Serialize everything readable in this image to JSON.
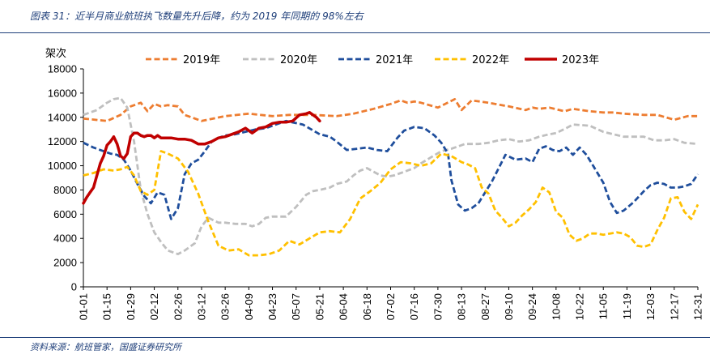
{
  "header": {
    "title": "图表 31：近半月商业航班执飞数量先升后降，约为 2019 年同期的 98%左右"
  },
  "footer": {
    "source": "资料来源：航班管家，国盛证券研究所"
  },
  "chart_data": {
    "type": "line",
    "ylabel": "架次",
    "ylim": [
      0,
      18000
    ],
    "yticks": [
      0,
      2000,
      4000,
      6000,
      8000,
      10000,
      12000,
      14000,
      16000,
      18000
    ],
    "x_tick_labels": [
      "01-01",
      "01-15",
      "01-29",
      "02-12",
      "02-26",
      "03-12",
      "03-26",
      "04-09",
      "04-23",
      "05-07",
      "05-21",
      "06-04",
      "06-18",
      "07-02",
      "07-16",
      "07-30",
      "08-13",
      "08-27",
      "09-10",
      "09-24",
      "10-08",
      "10-22",
      "11-05",
      "11-19",
      "12-03",
      "12-17",
      "12-31"
    ],
    "legend_position": "top",
    "series": [
      {
        "name": "2019年",
        "color": "#ed7d31",
        "dash": "dashed",
        "x": [
          0,
          14,
          22,
          28,
          34,
          38,
          42,
          46,
          50,
          56,
          60,
          70,
          84,
          98,
          112,
          122,
          136,
          150,
          160,
          172,
          182,
          188,
          192,
          196,
          200,
          210,
          220,
          224,
          230,
          240,
          252,
          262,
          266,
          270,
          276,
          285,
          290,
          300,
          308,
          314,
          320,
          332,
          340,
          350,
          358,
          364
        ],
        "y": [
          13900,
          13700,
          14200,
          14900,
          15200,
          14500,
          15100,
          14900,
          15000,
          14900,
          14200,
          13700,
          14100,
          14300,
          14100,
          14200,
          14200,
          14100,
          14300,
          14700,
          15100,
          15400,
          15200,
          15300,
          15200,
          14800,
          15500,
          14600,
          15400,
          15200,
          14900,
          14600,
          14800,
          14700,
          14800,
          14500,
          14700,
          14500,
          14400,
          14400,
          14300,
          14200,
          14200,
          13800,
          14100,
          14100
        ]
      },
      {
        "name": "2020年",
        "color": "#bfbfbf",
        "dash": "dashed",
        "x": [
          0,
          8,
          14,
          18,
          22,
          26,
          30,
          34,
          38,
          42,
          46,
          50,
          56,
          60,
          66,
          70,
          74,
          80,
          84,
          90,
          96,
          100,
          104,
          108,
          112,
          116,
          120,
          126,
          132,
          136,
          140,
          146,
          150,
          156,
          160,
          164,
          168,
          172,
          176,
          180,
          184,
          190,
          196,
          200,
          206,
          212,
          218,
          226,
          234,
          240,
          246,
          252,
          258,
          264,
          270,
          276,
          280,
          286,
          290,
          300,
          308,
          314,
          320,
          326,
          332,
          338,
          344,
          350,
          356,
          364
        ],
        "y": [
          14200,
          14600,
          15200,
          15500,
          15600,
          14800,
          12000,
          8000,
          6000,
          4500,
          3700,
          3000,
          2700,
          3000,
          3600,
          5000,
          5700,
          5300,
          5300,
          5200,
          5200,
          5000,
          5200,
          5700,
          5800,
          5800,
          5800,
          6600,
          7600,
          7900,
          8000,
          8200,
          8500,
          8700,
          9200,
          9600,
          9800,
          9500,
          9200,
          9100,
          9200,
          9500,
          9800,
          10200,
          10700,
          11200,
          11400,
          11800,
          11800,
          11900,
          12100,
          12200,
          12000,
          12100,
          12400,
          12600,
          12700,
          13100,
          13400,
          13300,
          12800,
          12600,
          12400,
          12400,
          12400,
          12100,
          12100,
          12200,
          11900,
          11800
        ]
      },
      {
        "name": "2021年",
        "color": "#1f4e9c",
        "dash": "dashed",
        "x": [
          0,
          6,
          12,
          16,
          20,
          24,
          28,
          32,
          36,
          40,
          44,
          48,
          52,
          56,
          60,
          64,
          68,
          72,
          76,
          80,
          84,
          90,
          96,
          102,
          108,
          114,
          120,
          130,
          140,
          146,
          150,
          156,
          162,
          168,
          174,
          180,
          186,
          190,
          196,
          202,
          208,
          212,
          216,
          218,
          222,
          226,
          230,
          234,
          238,
          242,
          246,
          250,
          256,
          262,
          266,
          270,
          274,
          278,
          282,
          286,
          290,
          294,
          298,
          302,
          308,
          312,
          316,
          320,
          326,
          332,
          336,
          340,
          344,
          348,
          352,
          356,
          360,
          364
        ],
        "y": [
          11900,
          11500,
          11200,
          11000,
          10900,
          10500,
          9600,
          8500,
          7500,
          6900,
          7800,
          7600,
          5600,
          6500,
          9300,
          10200,
          10500,
          11200,
          12000,
          12300,
          12500,
          12600,
          12800,
          13000,
          13100,
          13400,
          13700,
          13400,
          12600,
          12400,
          12000,
          11300,
          11400,
          11500,
          11300,
          11200,
          12300,
          12900,
          13200,
          13100,
          12500,
          11900,
          11000,
          8800,
          6800,
          6300,
          6500,
          6900,
          7800,
          8700,
          9800,
          10900,
          10500,
          10600,
          10300,
          11400,
          11600,
          11300,
          11200,
          11500,
          10900,
          11500,
          10900,
          10000,
          8600,
          7000,
          6100,
          6300,
          7000,
          7900,
          8400,
          8600,
          8500,
          8200,
          8200,
          8300,
          8500,
          9300
        ]
      },
      {
        "name": "2022年",
        "color": "#ffc000",
        "dash": "dashed",
        "x": [
          0,
          6,
          12,
          18,
          22,
          26,
          30,
          34,
          38,
          42,
          46,
          50,
          56,
          62,
          68,
          74,
          80,
          86,
          92,
          98,
          104,
          110,
          116,
          122,
          128,
          134,
          140,
          146,
          152,
          158,
          164,
          170,
          176,
          182,
          188,
          194,
          200,
          206,
          212,
          218,
          224,
          228,
          232,
          236,
          240,
          244,
          248,
          252,
          256,
          260,
          264,
          268,
          272,
          276,
          280,
          284,
          288,
          292,
          296,
          300,
          304,
          308,
          312,
          316,
          320,
          324,
          328,
          332,
          336,
          340,
          344,
          348,
          352,
          356,
          360,
          364
        ],
        "y": [
          9200,
          9400,
          9700,
          9600,
          9700,
          9900,
          9200,
          7900,
          7600,
          8000,
          11200,
          11000,
          10600,
          9500,
          7700,
          5400,
          3400,
          3000,
          3100,
          2600,
          2600,
          2700,
          3000,
          3800,
          3500,
          4000,
          4500,
          4600,
          4500,
          5600,
          7300,
          7900,
          8600,
          9700,
          10300,
          10200,
          10000,
          10200,
          11000,
          10800,
          10300,
          10100,
          9800,
          8200,
          7700,
          6300,
          5700,
          5000,
          5300,
          5900,
          6400,
          7000,
          8200,
          7800,
          6200,
          5700,
          4300,
          3800,
          4000,
          4400,
          4400,
          4300,
          4400,
          4500,
          4400,
          4100,
          3400,
          3300,
          3500,
          4700,
          5700,
          7300,
          7400,
          6200,
          5600,
          6800
        ]
      },
      {
        "name": "2023年",
        "color": "#c00000",
        "dash": "solid",
        "x": [
          0,
          2,
          4,
          6,
          8,
          10,
          12,
          14,
          16,
          18,
          20,
          22,
          24,
          26,
          28,
          30,
          32,
          34,
          36,
          38,
          40,
          42,
          44,
          46,
          48,
          52,
          56,
          60,
          64,
          68,
          72,
          76,
          80,
          84,
          88,
          92,
          96,
          100,
          104,
          108,
          112,
          116,
          120,
          124,
          128,
          132,
          134,
          136,
          138,
          140
        ],
        "y": [
          6900,
          7400,
          7800,
          8200,
          9200,
          10200,
          10800,
          11700,
          12000,
          12400,
          11800,
          10800,
          10600,
          11000,
          12400,
          12700,
          12700,
          12500,
          12400,
          12500,
          12500,
          12300,
          12500,
          12300,
          12300,
          12300,
          12200,
          12200,
          12100,
          11800,
          11800,
          12000,
          12300,
          12400,
          12600,
          12800,
          13100,
          12700,
          13100,
          13200,
          13500,
          13600,
          13600,
          13700,
          14200,
          14300,
          14400,
          14200,
          14000,
          13700
        ]
      }
    ]
  }
}
